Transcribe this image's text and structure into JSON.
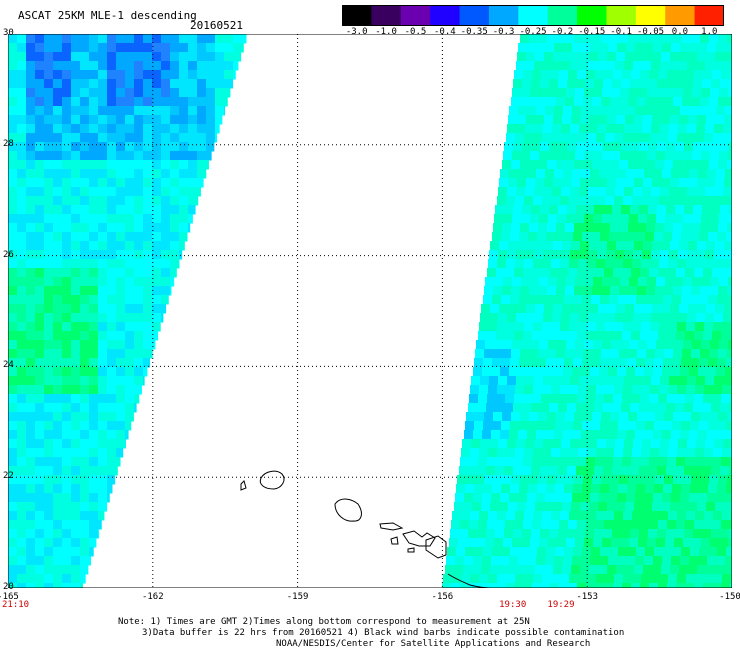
{
  "title": "ASCAT 25KM MLE-1 descending",
  "date": "20160521",
  "colorbar": {
    "colors": [
      "#000000",
      "#3a0060",
      "#6a00b0",
      "#2000ff",
      "#0058ff",
      "#00a8ff",
      "#00ffff",
      "#00ff9a",
      "#00ff00",
      "#a0ff00",
      "#ffff00",
      "#ff9a00",
      "#ff2000"
    ],
    "labels": [
      "-3.0",
      "-1.0",
      "-0.5",
      "-0.4",
      "-0.35",
      "-0.3",
      "-0.25",
      "-0.2",
      "-0.15",
      "-0.1",
      "-0.05",
      "0.0",
      "1.0"
    ]
  },
  "axes": {
    "x_ticks": [
      "-165",
      "-162",
      "-159",
      "-156",
      "-153",
      "-150"
    ],
    "y_ticks": [
      "30",
      "28",
      "26",
      "24",
      "22",
      "20"
    ],
    "lon_range": [
      -165,
      -150
    ],
    "lat_range": [
      20,
      30
    ]
  },
  "times": [
    {
      "text": "21:10",
      "lon": -165
    },
    {
      "text": "19:30",
      "lon": -154.7
    },
    {
      "text": "19:29",
      "lon": -153.7
    }
  ],
  "notes": [
    "Note: 1) Times are GMT 2)Times along bottom correspond to measurement at 25N",
    "3)Data buffer is 22 hrs from 20160521 4) Black wind barbs indicate possible contamination",
    "NOAA/NESDIS/Center for Satellite Applications and Research"
  ]
}
